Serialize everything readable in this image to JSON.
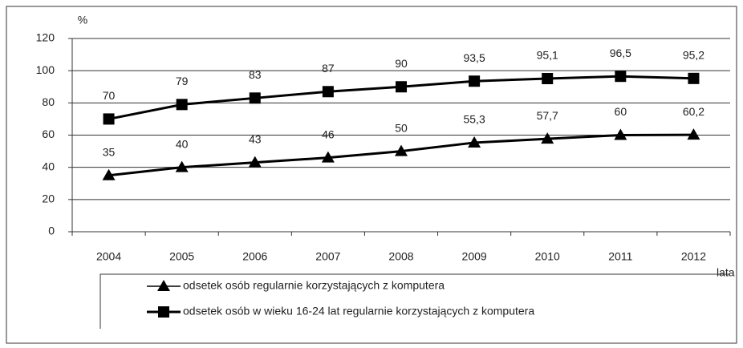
{
  "chart_data": {
    "type": "line",
    "y_label": "%",
    "x_label": "lata",
    "categories": [
      "2004",
      "2005",
      "2006",
      "2007",
      "2008",
      "2009",
      "2010",
      "2011",
      "2012"
    ],
    "series": [
      {
        "name": "odsetek osób regularnie korzystających z komputera",
        "color": "#000000",
        "marker": "triangle",
        "values": [
          35,
          40,
          43,
          46,
          50,
          55.3,
          57.7,
          60,
          60.2
        ],
        "value_labels": [
          "35",
          "40",
          "43",
          "46",
          "50",
          "55,3",
          "57,7",
          "60",
          "60,2"
        ]
      },
      {
        "name": "odsetek osób w wieku 16-24 lat regularnie korzystających z komputera",
        "color": "#000000",
        "marker": "square",
        "values": [
          70,
          79,
          83,
          87,
          90,
          93.5,
          95.1,
          96.5,
          95.2
        ],
        "value_labels": [
          "70",
          "79",
          "83",
          "87",
          "90",
          "93,5",
          "95,1",
          "96,5",
          "95,2"
        ]
      }
    ],
    "ylim": [
      0,
      120
    ],
    "yticks": [
      0,
      20,
      40,
      60,
      80,
      100,
      120
    ],
    "grid": true
  }
}
